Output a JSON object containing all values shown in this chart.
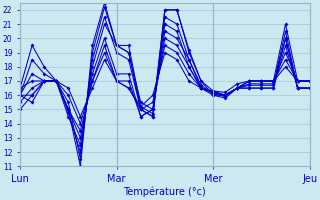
{
  "bg_color": "#cce8f0",
  "grid_color": "#a0c8d8",
  "line_color": "#0000cc",
  "marker": "D",
  "markersize": 2.5,
  "ylim": [
    11,
    22.5
  ],
  "yticks": [
    11,
    12,
    13,
    14,
    15,
    16,
    17,
    18,
    19,
    20,
    21,
    22
  ],
  "xtick_labels": [
    "Lun",
    "Mar",
    "Mer",
    "Jeu"
  ],
  "xtick_positions": [
    0,
    8,
    16,
    24
  ],
  "xlabel": "Température (°c)",
  "series": [
    [
      15.0,
      16.0,
      17.0,
      17.0,
      15.0,
      11.0,
      19.5,
      22.5,
      19.5,
      19.0,
      15.0,
      14.5,
      22.0,
      22.0,
      19.0,
      17.0,
      16.0,
      16.0,
      16.5,
      16.5,
      16.5,
      16.5,
      20.0,
      16.5,
      16.5
    ],
    [
      16.5,
      19.5,
      18.0,
      17.0,
      15.5,
      11.5,
      19.0,
      22.2,
      19.5,
      19.5,
      15.2,
      14.7,
      22.0,
      22.0,
      19.2,
      17.0,
      16.3,
      16.2,
      16.8,
      17.0,
      17.0,
      17.0,
      21.0,
      17.0,
      17.0
    ],
    [
      16.0,
      18.5,
      17.5,
      17.0,
      14.8,
      12.0,
      18.5,
      21.5,
      19.0,
      18.5,
      15.0,
      14.5,
      21.5,
      21.0,
      18.5,
      16.7,
      16.1,
      15.9,
      16.5,
      16.7,
      16.7,
      16.7,
      20.5,
      16.5,
      16.5
    ],
    [
      16.0,
      17.5,
      17.0,
      17.0,
      14.5,
      12.5,
      18.0,
      21.0,
      19.5,
      19.0,
      15.5,
      15.0,
      21.0,
      20.5,
      18.0,
      16.5,
      16.0,
      15.8,
      16.5,
      16.8,
      16.8,
      16.8,
      20.0,
      16.5,
      16.5
    ],
    [
      15.5,
      16.5,
      17.0,
      17.0,
      15.0,
      13.0,
      17.5,
      20.0,
      17.5,
      17.5,
      14.5,
      15.0,
      20.5,
      20.0,
      18.5,
      16.5,
      16.2,
      16.0,
      16.5,
      16.5,
      16.5,
      16.5,
      19.5,
      16.5,
      16.5
    ],
    [
      16.5,
      17.0,
      17.0,
      17.0,
      15.0,
      13.5,
      17.0,
      19.5,
      17.0,
      17.0,
      14.5,
      15.0,
      20.0,
      19.5,
      18.0,
      16.5,
      16.2,
      16.0,
      16.5,
      17.0,
      17.0,
      17.0,
      19.0,
      17.0,
      17.0
    ],
    [
      16.0,
      16.0,
      17.0,
      17.0,
      16.0,
      14.0,
      17.0,
      19.0,
      17.0,
      16.5,
      15.0,
      15.5,
      19.5,
      19.0,
      17.5,
      16.5,
      16.2,
      16.0,
      16.5,
      17.0,
      17.0,
      17.0,
      18.5,
      17.0,
      17.0
    ],
    [
      16.0,
      15.5,
      17.0,
      17.0,
      16.5,
      14.5,
      16.5,
      18.5,
      17.0,
      16.5,
      15.2,
      16.0,
      19.0,
      18.5,
      17.0,
      16.5,
      16.3,
      16.0,
      16.5,
      17.0,
      17.0,
      17.0,
      18.0,
      17.0,
      17.0
    ]
  ]
}
